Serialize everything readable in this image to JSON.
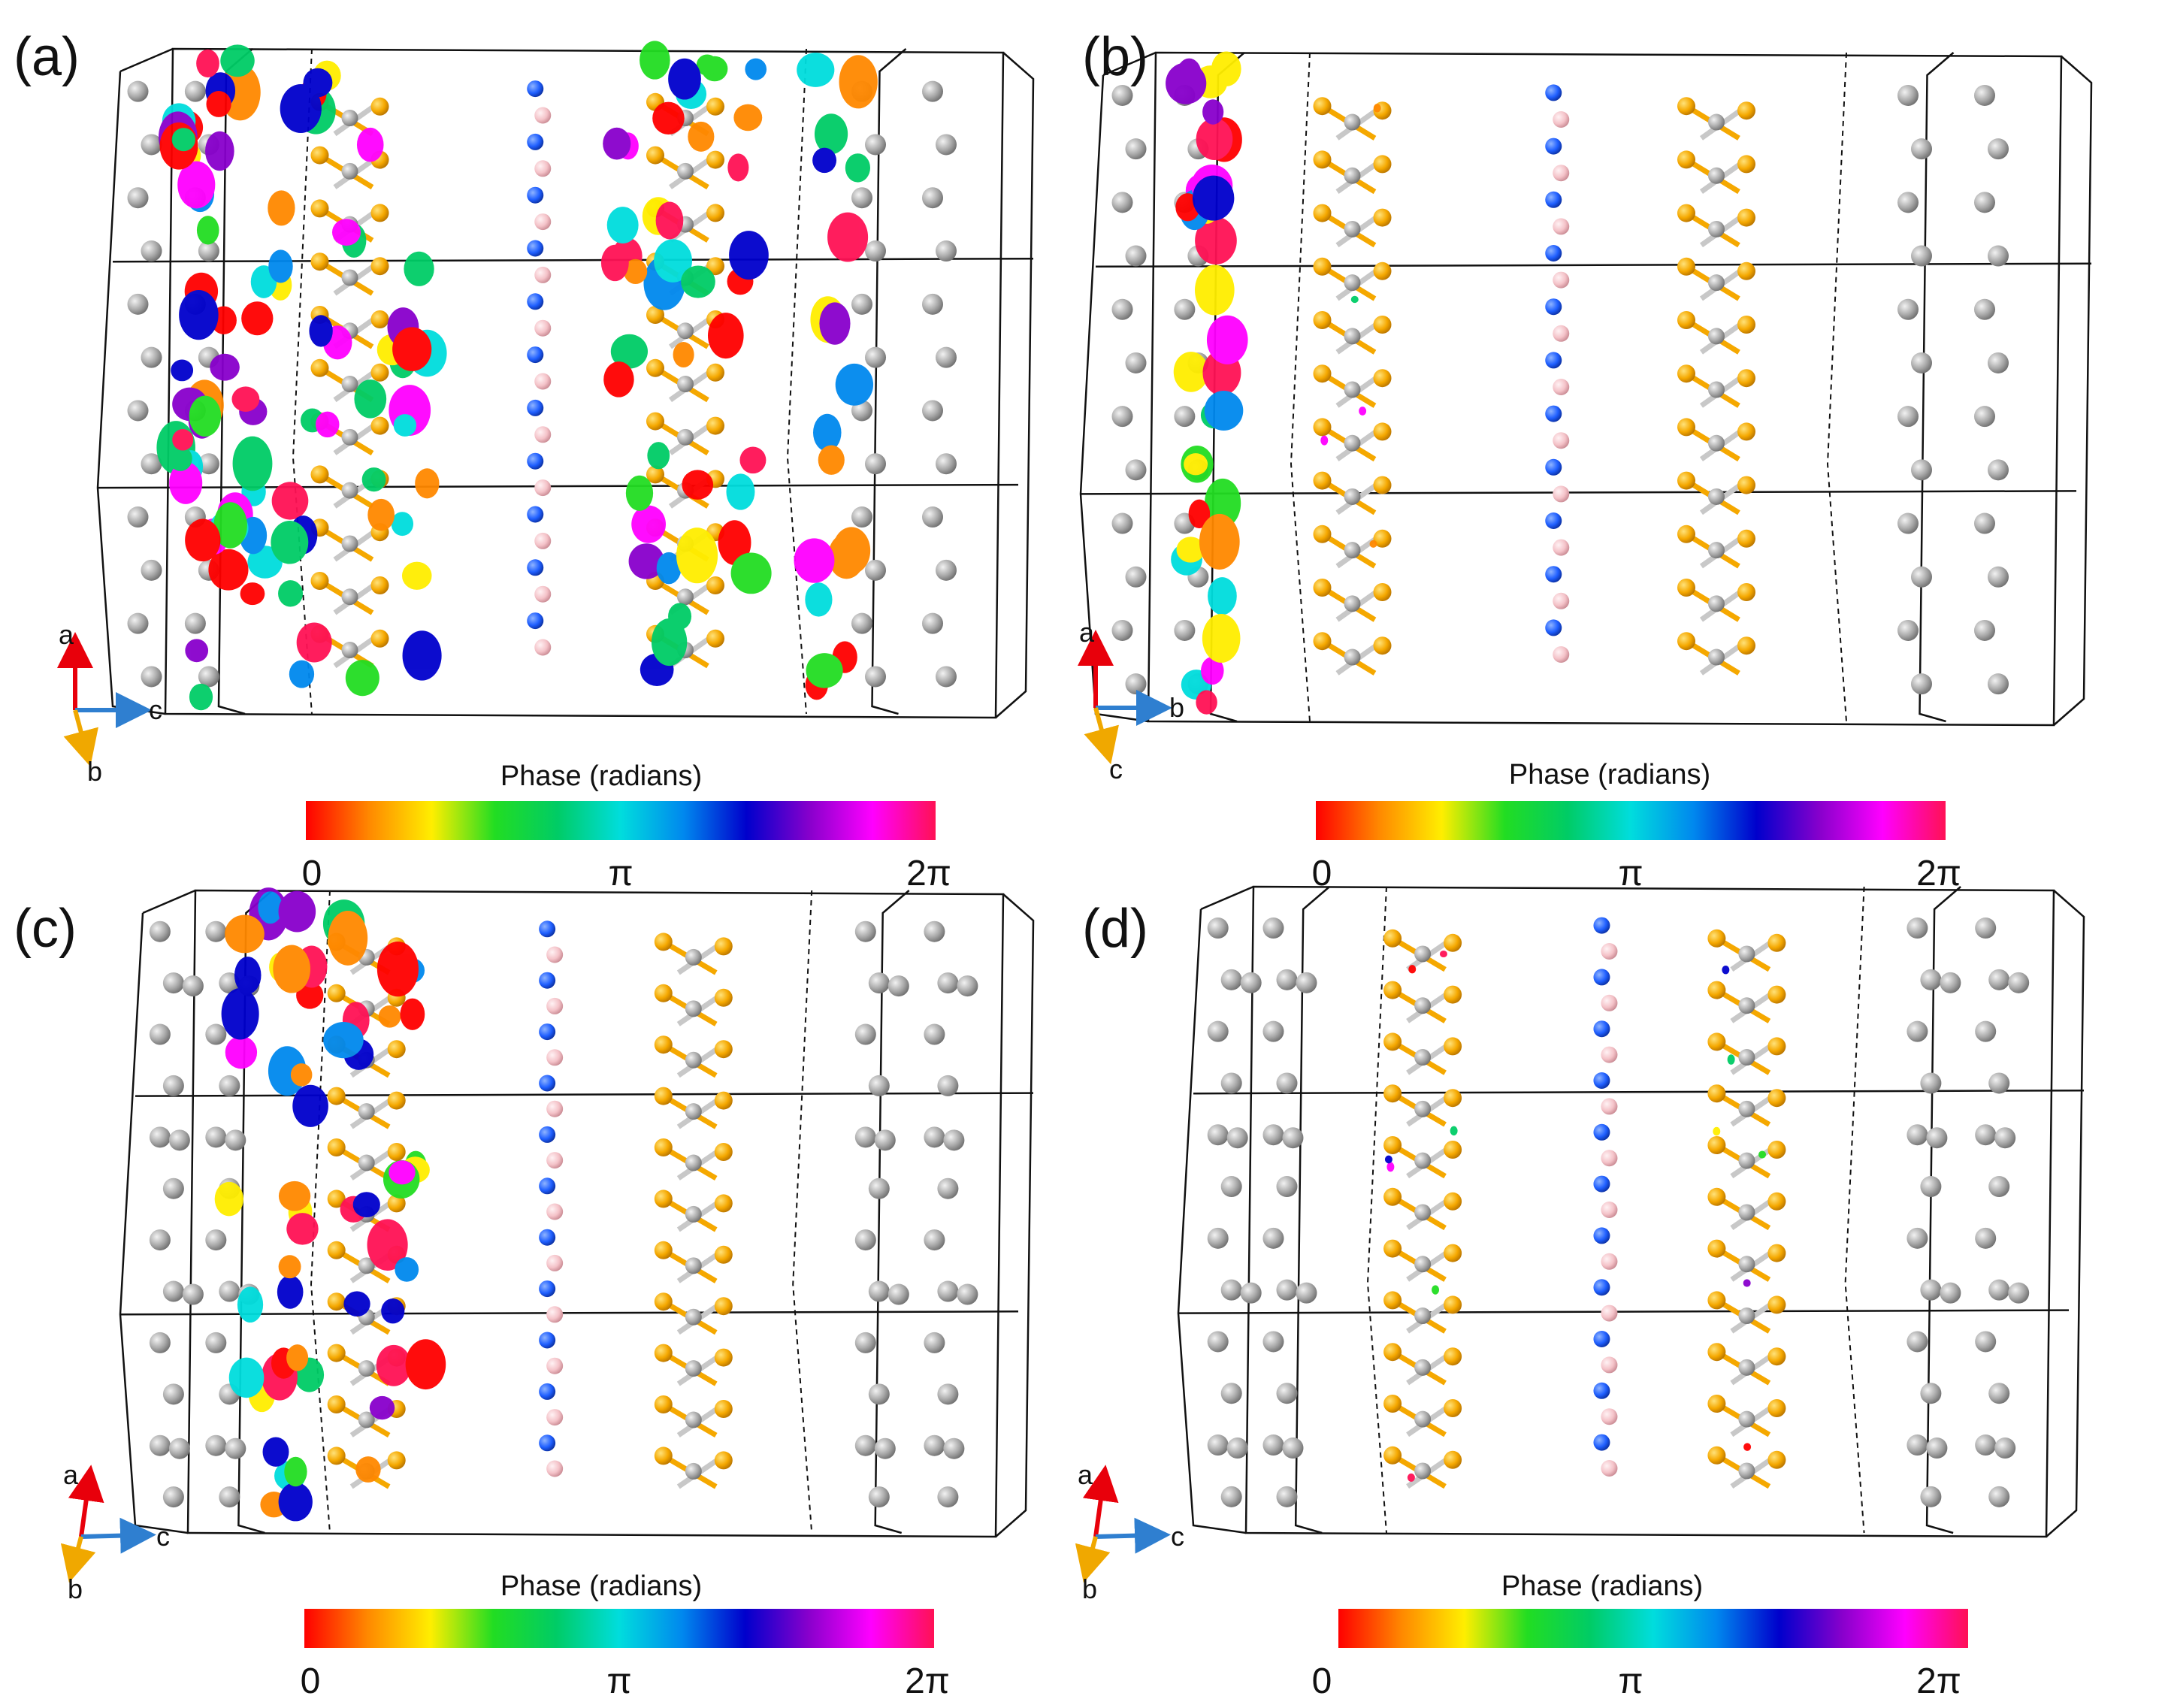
{
  "colorbar": {
    "stops": [
      "#ff0000",
      "#ff8800",
      "#ffee00",
      "#22dd22",
      "#00cc66",
      "#00dddd",
      "#0088ee",
      "#0000cc",
      "#8800cc",
      "#ff00ff",
      "#ff1155"
    ]
  },
  "colors": {
    "atom_grey": "#b4b4b4",
    "atom_gold": "#f5a800",
    "atom_blue": "#1f5fff",
    "atom_pink": "#f4c2c8",
    "bond_gold": "#f5a800",
    "bond_grey": "#c8c8c8"
  },
  "panels": [
    {
      "id": "a",
      "label": "(a)",
      "axes": {
        "up": "a",
        "right": "c",
        "down": "b"
      },
      "colorbar_title": "Phase (radians)",
      "ticks": [
        "0",
        "π",
        "2π"
      ],
      "orbital_level": "high"
    },
    {
      "id": "b",
      "label": "(b)",
      "axes": {
        "up": "a",
        "right": "b",
        "down": "c"
      },
      "colorbar_title": "Phase (radians)",
      "ticks": [
        "0",
        "π",
        "2π"
      ],
      "orbital_level": "medium"
    },
    {
      "id": "c",
      "label": "(c)",
      "axes": {
        "up": "a",
        "right": "c",
        "down": "b"
      },
      "colorbar_title": "Phase (radians)",
      "ticks": [
        "0",
        "π",
        "2π"
      ],
      "orbital_level": "medium"
    },
    {
      "id": "d",
      "label": "(d)",
      "axes": {
        "up": "a",
        "right": "c",
        "down": "b"
      },
      "colorbar_title": "Phase (radians)",
      "ticks": [
        "0",
        "π",
        "2π"
      ],
      "orbital_level": "low"
    }
  ]
}
